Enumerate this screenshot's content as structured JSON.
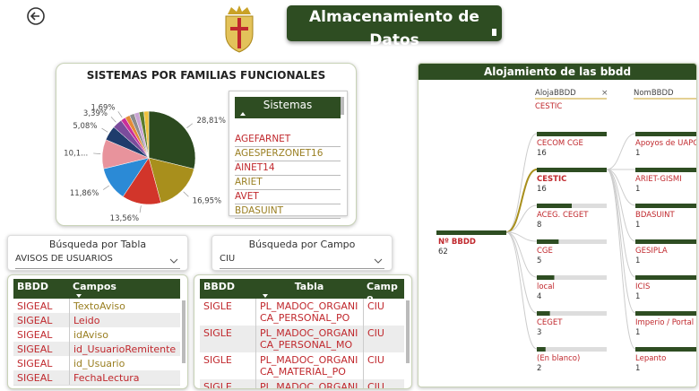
{
  "header": {
    "title": "Almacenamiento de Datos"
  },
  "chart_data": {
    "type": "pie",
    "title": "SISTEMAS POR FAMILIAS FUNCIONALES",
    "values": [
      28.81,
      16.95,
      13.56,
      11.86,
      10.17,
      5.08,
      3.39,
      1.69,
      1.69,
      1.69,
      1.69,
      1.69,
      1.69
    ],
    "value_labels": [
      "28,81%",
      "16,95%",
      "13,56%",
      "11,86%",
      "10,1...",
      "5,08%",
      "3,39%",
      "1,69%",
      null,
      null,
      null,
      null,
      null
    ],
    "colors": [
      "#2c4a1f",
      "#a88f1c",
      "#d2352a",
      "#2b8ad6",
      "#e8939c",
      "#1f3c6c",
      "#7a4c9c",
      "#c92f9a",
      "#e48a36",
      "#8c8c8c",
      "#c9a3d4",
      "#5c7c2c",
      "#f0c03c"
    ]
  },
  "sistemas": {
    "title": "Sistemas",
    "items": [
      "AGEFARNET",
      "AGESPERZONET16",
      "AINET14",
      "ARIET",
      "AVET",
      "BDASUINT"
    ]
  },
  "busqueda_tabla": {
    "label": "Búsqueda por Tabla",
    "value": "AVISOS DE USUARIOS"
  },
  "busqueda_campo": {
    "label": "Búsqueda por Campo",
    "value": "CIU"
  },
  "table_campos": {
    "columns": [
      "BBDD",
      "Campos"
    ],
    "rows": [
      [
        "SIGEAL",
        "TextoAviso"
      ],
      [
        "SIGEAL",
        "Leido"
      ],
      [
        "SIGEAL",
        "idAviso"
      ],
      [
        "SIGEAL",
        "id_UsuarioRemitente"
      ],
      [
        "SIGEAL",
        "id_Usuario"
      ],
      [
        "SIGEAL",
        "FechaLectura"
      ]
    ]
  },
  "table_tablas": {
    "columns": [
      "BBDD",
      "Tabla",
      "Campo"
    ],
    "rows": [
      [
        "SIGLE",
        "PL_MADOC_ORGANICA_PERSONAL_PO",
        "CIU"
      ],
      [
        "SIGLE",
        "PL_MADOC_ORGANICA_PERSONAL_MOD",
        "CIU"
      ],
      [
        "SIGLE",
        "PL_MADOC_ORGANICA_MATERIAL_PO",
        "CIU"
      ],
      [
        "SIGLE",
        "PL_MADOC_ORGANICA_",
        "CIU"
      ]
    ]
  },
  "tree": {
    "title": "Alojamiento de las bbdd",
    "level1_field": "AlojaBBDD",
    "level1_filter": "CESTIC",
    "level2_field": "NomBBDD",
    "root": {
      "label": "Nº BBDD",
      "value": 62
    },
    "level1": [
      {
        "label": "CECOM CGE",
        "value": 16
      },
      {
        "label": "CESTIC",
        "value": 16
      },
      {
        "label": "ACEG. CEGET",
        "value": 8
      },
      {
        "label": "CGE",
        "value": 5
      },
      {
        "label": "local",
        "value": 4
      },
      {
        "label": "CEGET",
        "value": 3
      },
      {
        "label": "(En blanco)",
        "value": 2
      }
    ],
    "level2": [
      {
        "label": "Apoyos de UAPC",
        "value": 1
      },
      {
        "label": "ARIET-GISMI",
        "value": 1
      },
      {
        "label": "BDASUINT",
        "value": 1
      },
      {
        "label": "GESIPLA",
        "value": 1
      },
      {
        "label": "ICIS",
        "value": 1
      },
      {
        "label": "Imperio / Portal",
        "value": 1
      },
      {
        "label": "Lepanto",
        "value": 1
      }
    ]
  }
}
